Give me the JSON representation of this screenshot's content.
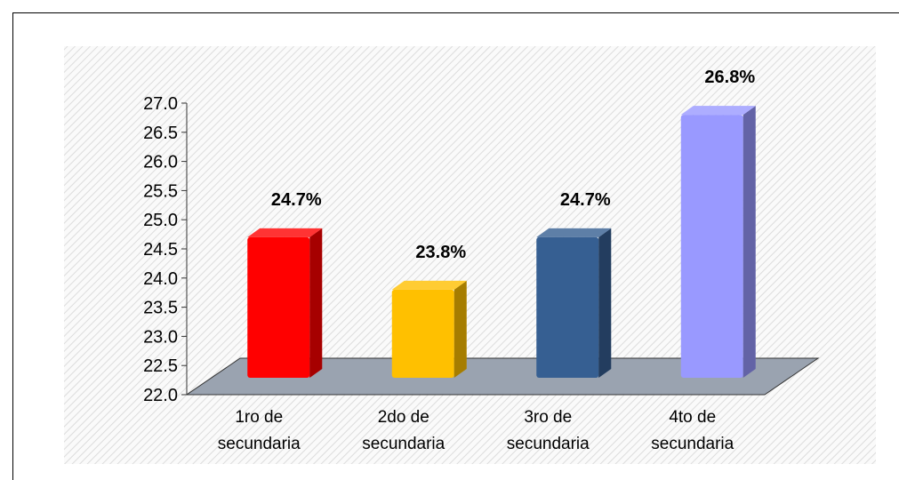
{
  "chart_data": {
    "type": "bar3d",
    "categories": [
      "1ro de secundaria",
      "2do de secundaria",
      "3ro de secundaria",
      "4to de secundaria"
    ],
    "values": [
      24.7,
      23.8,
      24.7,
      26.8
    ],
    "value_labels": [
      "24.7%",
      "23.8%",
      "24.7%",
      "26.8%"
    ],
    "colors": [
      "#ff0000",
      "#ffc000",
      "#365f92",
      "#9999ff"
    ],
    "ylim": [
      22,
      27
    ],
    "yticks": [
      {
        "value": 22,
        "label": "22.0"
      },
      22.5,
      {
        "value": 23,
        "label": "23.0"
      },
      23.5,
      {
        "value": 24,
        "label": "24.0"
      },
      24.5,
      {
        "value": 25,
        "label": "25.0"
      },
      25.5,
      {
        "value": 26,
        "label": "26.0"
      },
      26.5,
      {
        "value": 27,
        "label": "27.0"
      }
    ]
  }
}
